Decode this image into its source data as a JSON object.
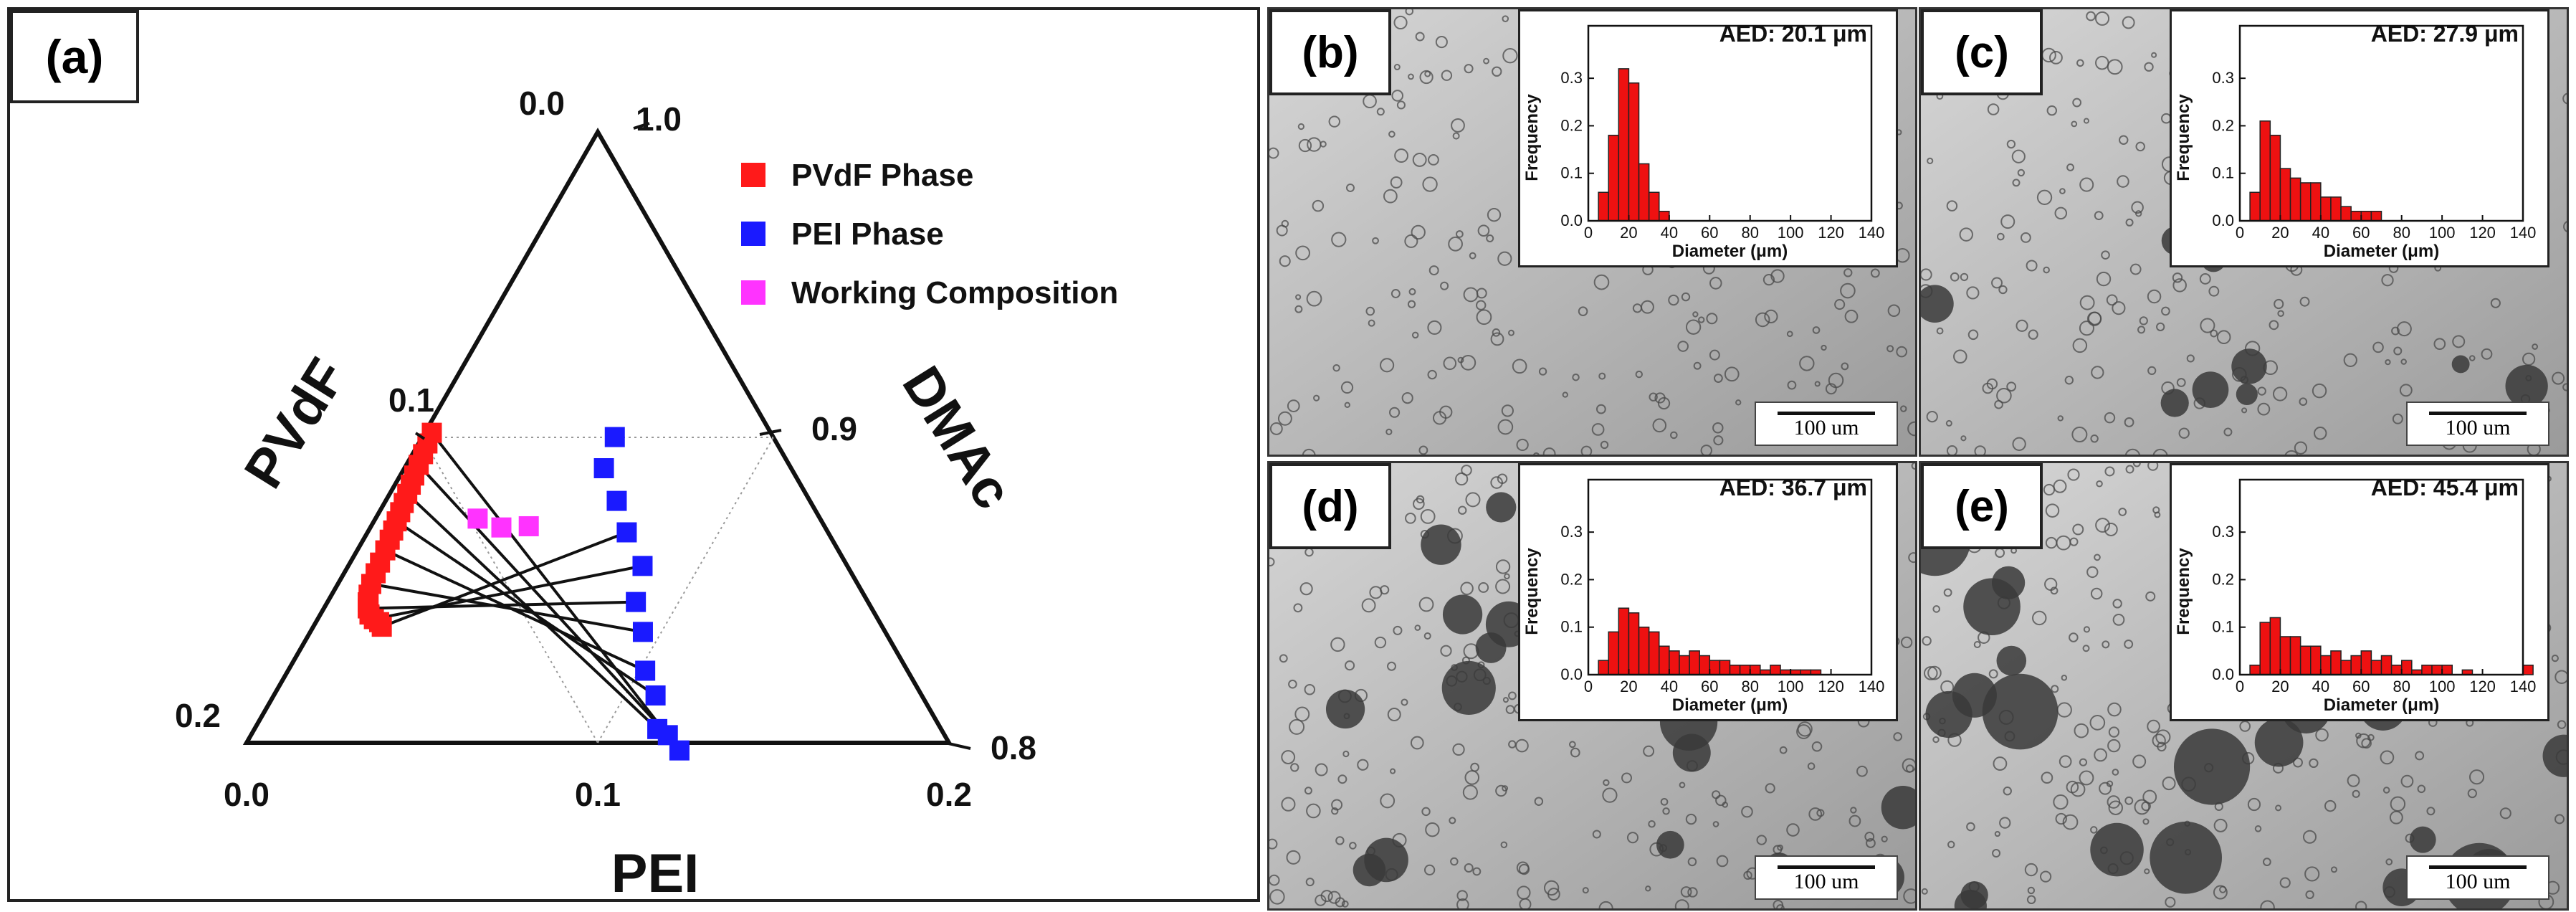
{
  "chart_data": [
    {
      "id": "a",
      "type": "scatter",
      "subtype": "ternary",
      "label": "(a)",
      "axes": {
        "left_label": "PVdF",
        "right_label": "DMAc",
        "bottom_label": "PEI",
        "left_ticks": [
          "0.0",
          "0.1",
          "0.2"
        ],
        "right_ticks": [
          "1.0",
          "0.9",
          "0.8"
        ],
        "bottom_ticks": [
          "0.0",
          "0.1",
          "0.2"
        ]
      },
      "legend": [
        "PVdF Phase",
        "PEI Phase",
        "Working Composition"
      ],
      "colors": {
        "pvdf": "#ff1a1a",
        "pei": "#1a1aff",
        "working": "#ff33ff",
        "tie": "#111111"
      },
      "series": [
        {
          "name": "PVdF Phase",
          "points": [
            [
              0.002,
              0.1015
            ],
            [
              0.0025,
              0.098
            ],
            [
              0.003,
              0.0945
            ],
            [
              0.0035,
              0.091
            ],
            [
              0.004,
              0.0875
            ],
            [
              0.0045,
              0.0845
            ],
            [
              0.005,
              0.0815
            ],
            [
              0.0055,
              0.0785
            ],
            [
              0.006,
              0.0755
            ],
            [
              0.0065,
              0.0725
            ],
            [
              0.007,
              0.0695
            ],
            [
              0.0075,
              0.0665
            ],
            [
              0.008,
              0.063
            ],
            [
              0.0085,
              0.059
            ],
            [
              0.009,
              0.0555
            ],
            [
              0.0095,
              0.052
            ],
            [
              0.0105,
              0.0485
            ],
            [
              0.0115,
              0.046
            ],
            [
              0.0125,
              0.044
            ],
            [
              0.014,
              0.042
            ],
            [
              0.016,
              0.0405
            ],
            [
              0.018,
              0.0395
            ],
            [
              0.0195,
              0.038
            ]
          ]
        },
        {
          "name": "PEI Phase",
          "points": [
            [
              0.0548,
              0.1001
            ],
            [
              0.0568,
              0.0899
            ],
            [
              0.0658,
              0.0792
            ],
            [
              0.0738,
              0.0689
            ],
            [
              0.0838,
              0.0579
            ],
            [
              0.0878,
              0.0461
            ],
            [
              0.0947,
              0.0363
            ],
            [
              0.1017,
              0.0236
            ],
            [
              0.1087,
              0.0155
            ],
            [
              0.1147,
              0.0045
            ],
            [
              0.1187,
              0.0025
            ],
            [
              0.1245,
              -0.0025
            ]
          ]
        },
        {
          "name": "Working Composition",
          "points": [
            [
              0.0291,
              0.0734
            ],
            [
              0.0373,
              0.0705
            ],
            [
              0.0449,
              0.0709
            ]
          ]
        }
      ],
      "tie_lines": [
        [
          [
            0.002,
            0.1015
          ],
          [
            0.1245,
            -0.0025
          ]
        ],
        [
          [
            0.0035,
            0.091
          ],
          [
            0.1187,
            0.0025
          ]
        ],
        [
          [
            0.005,
            0.0815
          ],
          [
            0.1147,
            0.0045
          ]
        ],
        [
          [
            0.0065,
            0.0725
          ],
          [
            0.1087,
            0.0155
          ]
        ],
        [
          [
            0.008,
            0.063
          ],
          [
            0.1017,
            0.0236
          ]
        ],
        [
          [
            0.0095,
            0.052
          ],
          [
            0.0947,
            0.0363
          ]
        ],
        [
          [
            0.0125,
            0.044
          ],
          [
            0.0878,
            0.0461
          ]
        ],
        [
          [
            0.016,
            0.0405
          ],
          [
            0.0838,
            0.0579
          ]
        ],
        [
          [
            0.0195,
            0.038
          ],
          [
            0.0738,
            0.0689
          ]
        ]
      ]
    },
    {
      "id": "b",
      "type": "bar",
      "label": "(b)",
      "aed": "AED: 20.1 μm",
      "xlabel": "Diameter (μm)",
      "ylabel": "Frequency",
      "x_ticks": [
        "0",
        "20",
        "40",
        "60",
        "80",
        "100",
        "120",
        "140"
      ],
      "y_ticks": [
        "0.0",
        "0.1",
        "0.2",
        "0.3"
      ],
      "xlim": [
        0,
        140
      ],
      "ylim": [
        0,
        0.35
      ],
      "bin_width": 5,
      "bin_starts": [
        5,
        10,
        15,
        20,
        25,
        30,
        35
      ],
      "values": [
        0.06,
        0.18,
        0.32,
        0.29,
        0.12,
        0.06,
        0.02
      ],
      "scale_bar": "100 um"
    },
    {
      "id": "c",
      "type": "bar",
      "label": "(c)",
      "aed": "AED: 27.9 μm",
      "xlabel": "Diameter (μm)",
      "ylabel": "Frequency",
      "x_ticks": [
        "0",
        "20",
        "40",
        "60",
        "80",
        "100",
        "120",
        "140"
      ],
      "y_ticks": [
        "0.0",
        "0.1",
        "0.2",
        "0.3"
      ],
      "xlim": [
        0,
        140
      ],
      "ylim": [
        0,
        0.35
      ],
      "bin_width": 5,
      "bin_starts": [
        5,
        10,
        15,
        20,
        25,
        30,
        35,
        40,
        45,
        50,
        55,
        60,
        65
      ],
      "values": [
        0.06,
        0.21,
        0.18,
        0.11,
        0.09,
        0.08,
        0.08,
        0.05,
        0.05,
        0.03,
        0.02,
        0.02,
        0.02
      ],
      "scale_bar": "100 um"
    },
    {
      "id": "d",
      "type": "bar",
      "label": "(d)",
      "aed": "AED: 36.7 μm",
      "xlabel": "Diameter (μm)",
      "ylabel": "Frequency",
      "x_ticks": [
        "0",
        "20",
        "40",
        "60",
        "80",
        "100",
        "120",
        "140"
      ],
      "y_ticks": [
        "0.0",
        "0.1",
        "0.2",
        "0.3"
      ],
      "xlim": [
        0,
        140
      ],
      "ylim": [
        0,
        0.35
      ],
      "bin_width": 5,
      "bin_starts": [
        5,
        10,
        15,
        20,
        25,
        30,
        35,
        40,
        45,
        50,
        55,
        60,
        65,
        70,
        75,
        80,
        85,
        90,
        95,
        100,
        105,
        110
      ],
      "values": [
        0.03,
        0.09,
        0.14,
        0.13,
        0.1,
        0.09,
        0.06,
        0.05,
        0.04,
        0.05,
        0.04,
        0.03,
        0.03,
        0.02,
        0.02,
        0.02,
        0.01,
        0.02,
        0.01,
        0.01,
        0.01,
        0.01
      ],
      "scale_bar": "100 um"
    },
    {
      "id": "e",
      "type": "bar",
      "label": "(e)",
      "aed": "AED: 45.4 μm",
      "xlabel": "Diameter (μm)",
      "ylabel": "Frequency",
      "x_ticks": [
        "0",
        "20",
        "40",
        "60",
        "80",
        "100",
        "120",
        "140"
      ],
      "y_ticks": [
        "0.0",
        "0.1",
        "0.2",
        "0.3"
      ],
      "xlim": [
        0,
        140
      ],
      "ylim": [
        0,
        0.35
      ],
      "bin_width": 5,
      "bin_starts": [
        5,
        10,
        15,
        20,
        25,
        30,
        35,
        40,
        45,
        50,
        55,
        60,
        65,
        70,
        75,
        80,
        85,
        90,
        95,
        100,
        110,
        140
      ],
      "values": [
        0.02,
        0.11,
        0.12,
        0.08,
        0.08,
        0.06,
        0.06,
        0.04,
        0.05,
        0.03,
        0.04,
        0.05,
        0.03,
        0.04,
        0.02,
        0.03,
        0.01,
        0.02,
        0.02,
        0.02,
        0.01,
        0.02
      ],
      "scale_bar": "100 um"
    }
  ]
}
